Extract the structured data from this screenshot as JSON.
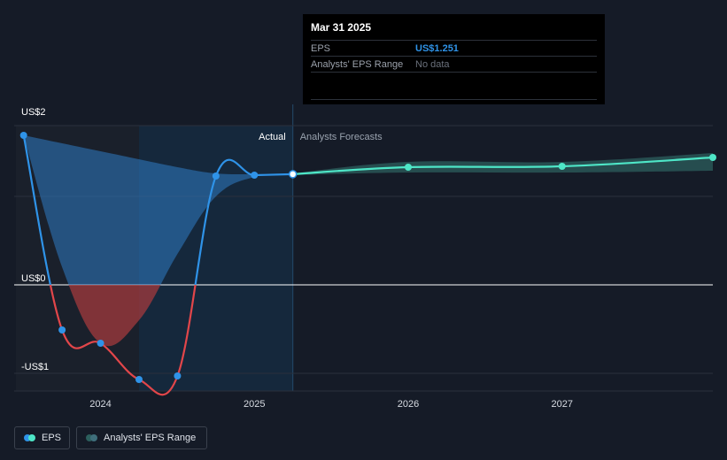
{
  "chart_data": {
    "type": "line",
    "y_axis": {
      "ylim": [
        -1.2,
        1.8
      ],
      "tick_values": [
        2,
        0,
        -1
      ],
      "tick_labels": [
        "US$2",
        "US$0",
        "-US$1"
      ]
    },
    "x_axis": {
      "xlim": [
        2023.45,
        2027.98
      ],
      "tick_values": [
        2024,
        2025,
        2026,
        2027
      ],
      "tick_labels": [
        "2024",
        "2025",
        "2026",
        "2027"
      ]
    },
    "regions": {
      "actual_label": "Actual",
      "forecast_label": "Analysts Forecasts",
      "highlight_range": [
        2024.25,
        2025.25
      ]
    },
    "series": [
      {
        "name": "EPS",
        "color": "#2f93e8",
        "negative_color": "#e2464a",
        "points": [
          {
            "x": 2023.5,
            "y": 1.69
          },
          {
            "x": 2023.75,
            "y": -0.51
          },
          {
            "x": 2024.0,
            "y": -0.66
          },
          {
            "x": 2024.25,
            "y": -1.07
          },
          {
            "x": 2024.5,
            "y": -1.03
          },
          {
            "x": 2024.75,
            "y": 1.23
          },
          {
            "x": 2025.0,
            "y": 1.24
          },
          {
            "x": 2025.25,
            "y": 1.251
          }
        ]
      },
      {
        "name": "EPS Forecast",
        "color": "#4ee6c7",
        "points": [
          {
            "x": 2025.25,
            "y": 1.251
          },
          {
            "x": 2026.0,
            "y": 1.33
          },
          {
            "x": 2027.0,
            "y": 1.34
          },
          {
            "x": 2027.98,
            "y": 1.44
          }
        ]
      },
      {
        "name": "Analysts' EPS Range",
        "color": "#2c5f5d",
        "upper": [
          {
            "x": 2025.25,
            "y": 1.26
          },
          {
            "x": 2026.0,
            "y": 1.39
          },
          {
            "x": 2027.0,
            "y": 1.39
          },
          {
            "x": 2027.98,
            "y": 1.49
          }
        ],
        "lower": [
          {
            "x": 2025.25,
            "y": 1.24
          },
          {
            "x": 2026.0,
            "y": 1.27
          },
          {
            "x": 2027.0,
            "y": 1.27
          },
          {
            "x": 2027.98,
            "y": 1.29
          }
        ]
      }
    ],
    "area_band": {
      "color": "#2f7bc4",
      "negative_color": "#a33a3e",
      "top": [
        {
          "x": 2023.5,
          "y": 1.69
        },
        {
          "x": 2024.0,
          "y": 1.51
        },
        {
          "x": 2024.5,
          "y": 1.33
        },
        {
          "x": 2024.75,
          "y": 1.26
        },
        {
          "x": 2025.0,
          "y": 1.25
        },
        {
          "x": 2025.25,
          "y": 1.251
        }
      ],
      "bottom": [
        {
          "x": 2023.5,
          "y": 1.69
        },
        {
          "x": 2023.75,
          "y": 0.2
        },
        {
          "x": 2024.0,
          "y": -0.66
        },
        {
          "x": 2024.25,
          "y": -0.4
        },
        {
          "x": 2024.5,
          "y": 0.35
        },
        {
          "x": 2024.75,
          "y": 1.0
        },
        {
          "x": 2025.0,
          "y": 1.22
        },
        {
          "x": 2025.25,
          "y": 1.251
        }
      ]
    }
  },
  "tooltip": {
    "date": "Mar 31 2025",
    "rows": [
      {
        "label": "EPS",
        "value": "US$1.251"
      },
      {
        "label": "Analysts' EPS Range",
        "value": "No data"
      }
    ]
  },
  "legend": {
    "eps_label": "EPS",
    "range_label": "Analysts' EPS Range",
    "eps_colors": [
      "#2f93e8",
      "#4ee6c7"
    ],
    "range_colors": [
      "#2c5f5d",
      "#3f6f7c"
    ]
  }
}
